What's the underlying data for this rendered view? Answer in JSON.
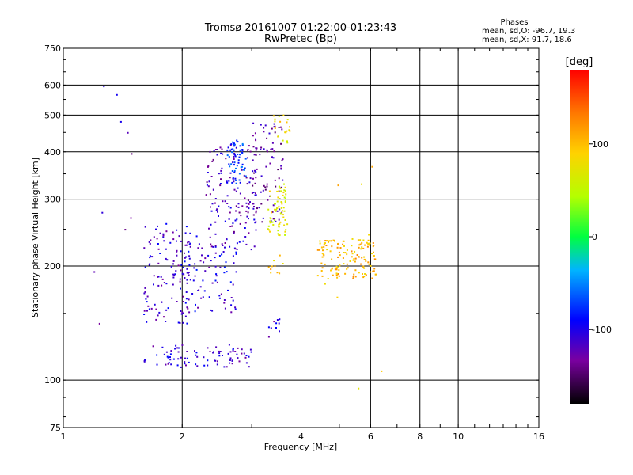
{
  "chart_data": {
    "type": "scatter",
    "title": "Tromsø 20161007 01:22:00-01:23:43",
    "subtitle": "RwPretec (Bp)",
    "xlabel": "Frequency [MHz]",
    "ylabel": "Stationary phase Virtual Height [km]",
    "xscale": "log",
    "yscale": "log",
    "xlim": [
      1,
      16
    ],
    "ylim": [
      75,
      750
    ],
    "xticks": [
      1,
      2,
      4,
      6,
      8,
      10,
      16
    ],
    "xtick_labels": [
      "1",
      "2",
      "4",
      "6",
      "8",
      "10",
      "16"
    ],
    "yticks": [
      75,
      100,
      200,
      300,
      400,
      500,
      600,
      750
    ],
    "ytick_labels": [
      "75",
      "100",
      "200",
      "300",
      "400",
      "500",
      "600",
      "750"
    ],
    "grid": true,
    "stats": {
      "heading": "Phases",
      "o_line": "mean, sd,O: -96.7, 19.3",
      "x_line": "mean, sd,X:  91.7, 18.6"
    },
    "colorbar": {
      "label": "[deg]",
      "range": [
        -180,
        180
      ],
      "ticks": [
        100,
        0,
        -100
      ],
      "tick_labels": [
        "100",
        "0",
        "-100"
      ]
    },
    "clusters": [
      {
        "fmin": 1.6,
        "fmax": 3.0,
        "hmin": 108,
        "hmax": 124,
        "n": 90,
        "phase": -110
      },
      {
        "fmin": 1.6,
        "fmax": 2.1,
        "hmin": 140,
        "hmax": 260,
        "n": 120,
        "phase": -112
      },
      {
        "fmin": 2.0,
        "fmax": 2.8,
        "hmin": 150,
        "hmax": 240,
        "n": 90,
        "phase": -105
      },
      {
        "fmin": 2.3,
        "fmax": 3.1,
        "hmin": 220,
        "hmax": 420,
        "n": 150,
        "phase": -118
      },
      {
        "fmin": 2.6,
        "fmax": 2.9,
        "hmin": 330,
        "hmax": 430,
        "n": 60,
        "phase": -75
      },
      {
        "fmin": 3.0,
        "fmax": 3.6,
        "hmin": 260,
        "hmax": 480,
        "n": 90,
        "phase": -125
      },
      {
        "fmin": 3.3,
        "fmax": 3.7,
        "hmin": 240,
        "hmax": 330,
        "n": 70,
        "phase": 70
      },
      {
        "fmin": 3.4,
        "fmax": 3.8,
        "hmin": 420,
        "hmax": 500,
        "n": 20,
        "phase": 80
      },
      {
        "fmin": 3.3,
        "fmax": 3.6,
        "hmin": 190,
        "hmax": 215,
        "n": 10,
        "phase": 100
      },
      {
        "fmin": 3.3,
        "fmax": 3.6,
        "hmin": 130,
        "hmax": 145,
        "n": 10,
        "phase": -115
      },
      {
        "fmin": 4.4,
        "fmax": 6.2,
        "hmin": 185,
        "hmax": 235,
        "n": 140,
        "phase": 102
      },
      {
        "fmin": 1.1,
        "fmax": 1.5,
        "hmin": 100,
        "hmax": 620,
        "n": 10,
        "phase": -120
      },
      {
        "fmin": 4.4,
        "fmax": 6.8,
        "hmin": 85,
        "hmax": 390,
        "n": 10,
        "phase": 90
      }
    ]
  }
}
